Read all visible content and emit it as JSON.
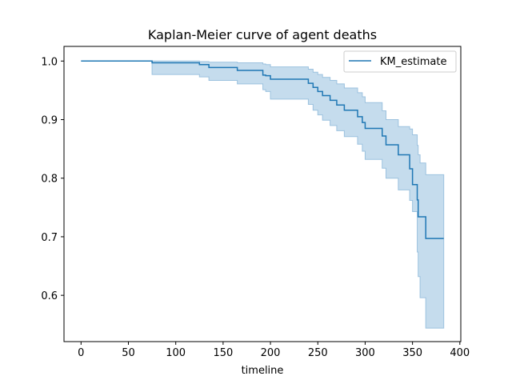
{
  "chart_data": {
    "type": "line",
    "title": "Kaplan-Meier curve of agent deaths",
    "xlabel": "timeline",
    "ylabel": "",
    "xlim": [
      -18,
      401
    ],
    "ylim": [
      0.521,
      1.025
    ],
    "xticks": [
      0,
      50,
      100,
      150,
      200,
      250,
      300,
      350,
      400
    ],
    "yticks": [
      0.6,
      0.7,
      0.8,
      0.9,
      1.0
    ],
    "xtick_labels": [
      "0",
      "50",
      "100",
      "150",
      "200",
      "250",
      "300",
      "350",
      "400"
    ],
    "ytick_labels": [
      "0.6",
      "0.7",
      "0.8",
      "0.9",
      "1.0"
    ],
    "grid": false,
    "legend_position": "top-right",
    "colors": {
      "line": "#1f77b4",
      "band": "#c5dced",
      "band_edge": "#9cc2df"
    },
    "series": [
      {
        "name": "KM_estimate",
        "step": "post",
        "x": [
          0,
          75,
          125,
          135,
          165,
          192,
          195,
          200,
          240,
          245,
          250,
          255,
          263,
          270,
          278,
          292,
          297,
          300,
          318,
          322,
          335,
          347,
          350,
          355,
          356,
          358,
          364,
          383
        ],
        "y": [
          1.0,
          0.997,
          0.994,
          0.989,
          0.984,
          0.976,
          0.975,
          0.969,
          0.962,
          0.955,
          0.948,
          0.941,
          0.933,
          0.925,
          0.916,
          0.905,
          0.895,
          0.885,
          0.872,
          0.857,
          0.84,
          0.816,
          0.789,
          0.763,
          0.734,
          0.734,
          0.697,
          0.697
        ],
        "ci_lower": [
          1.0,
          0.977,
          0.973,
          0.967,
          0.961,
          0.951,
          0.948,
          0.935,
          0.926,
          0.916,
          0.908,
          0.899,
          0.89,
          0.881,
          0.871,
          0.858,
          0.846,
          0.832,
          0.817,
          0.8,
          0.78,
          0.762,
          0.743,
          0.674,
          0.632,
          0.596,
          0.544,
          0.544
        ],
        "ci_upper": [
          1.0,
          1.0,
          0.999,
          0.998,
          0.997,
          0.995,
          0.994,
          0.99,
          0.986,
          0.981,
          0.977,
          0.972,
          0.967,
          0.961,
          0.954,
          0.946,
          0.939,
          0.929,
          0.915,
          0.9,
          0.888,
          0.884,
          0.874,
          0.856,
          0.84,
          0.826,
          0.806,
          0.806
        ]
      }
    ]
  }
}
